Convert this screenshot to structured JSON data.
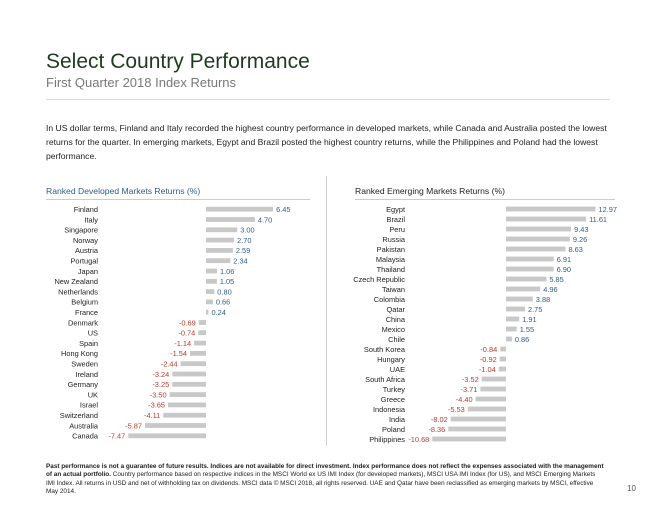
{
  "title": "Select Country Performance",
  "subtitle": "First Quarter 2018 Index Returns",
  "intro": "In US dollar terms, Finland and Italy recorded the highest country performance in developed markets, while Canada and Australia posted the lowest returns for the quarter. In emerging markets, Egypt and Brazil posted the highest country returns, while the Philippines and Poland had the lowest performance.",
  "footer_bold": "Past performance is not a guarantee of future results. Indices are not available for direct investment. Index performance does not reflect the expenses associated with the management of an actual portfolio.",
  "footer_rest": " Country performance based on respective indices in the MSCI World ex US IMI Index (for developed markets), MSCI USA IMI Index (for US), and MSCI Emerging Markets IMI Index. All returns in USD and net of withholding tax on dividends. MSCI data © MSCI 2018, all rights reserved. UAE and Qatar have been reclassified as emerging markets by MSCI, effective May 2014.",
  "page_number": "10",
  "colors": {
    "positive": "#2e5d8a",
    "negative": "#c0392b",
    "bar": "#c8c8c8"
  },
  "chart_data": [
    {
      "type": "bar",
      "orientation": "horizontal",
      "title": "Ranked Developed Markets Returns (%)",
      "categories": [
        "Finland",
        "Italy",
        "Singapore",
        "Norway",
        "Austria",
        "Portugal",
        "Japan",
        "New Zealand",
        "Netherlands",
        "Belgium",
        "France",
        "Denmark",
        "US",
        "Spain",
        "Hong Kong",
        "Sweden",
        "Ireland",
        "Germany",
        "UK",
        "Israel",
        "Switzerland",
        "Australia",
        "Canada"
      ],
      "values": [
        6.45,
        4.7,
        3.0,
        2.7,
        2.59,
        2.34,
        1.06,
        1.05,
        0.8,
        0.66,
        0.24,
        -0.69,
        -0.74,
        -1.14,
        -1.54,
        -2.44,
        -3.24,
        -3.25,
        -3.5,
        -3.65,
        -4.11,
        -5.87,
        -7.47
      ],
      "labels": [
        "6.45",
        "4.70",
        "3.00",
        "2.70",
        "2.59",
        "2.34",
        "1.06",
        "1.05",
        "0.80",
        "0.66",
        "0.24",
        "-0.69",
        "-0.74",
        "-1.14",
        "-1.54",
        "-2.44",
        "-3.24",
        "-3.25",
        "-3.50",
        "-3.65",
        "-4.11",
        "-5.87",
        "-7.47"
      ]
    },
    {
      "type": "bar",
      "orientation": "horizontal",
      "title": "Ranked Emerging Markets Returns (%)",
      "categories": [
        "Egypt",
        "Brazil",
        "Peru",
        "Russia",
        "Pakistan",
        "Malaysia",
        "Thailand",
        "Czech Republic",
        "Taiwan",
        "Colombia",
        "Qatar",
        "China",
        "Mexico",
        "Chile",
        "South Korea",
        "Hungary",
        "UAE",
        "South Africa",
        "Turkey",
        "Greece",
        "Indonesia",
        "India",
        "Poland",
        "Philippines"
      ],
      "values": [
        12.97,
        11.61,
        9.43,
        9.26,
        8.63,
        6.91,
        6.9,
        5.85,
        4.96,
        3.88,
        2.75,
        1.91,
        1.55,
        0.86,
        -0.84,
        -0.92,
        -1.04,
        -3.52,
        -3.71,
        -4.4,
        -5.53,
        -8.02,
        -8.36,
        -10.68
      ],
      "labels": [
        "12.97",
        "11.61",
        "9.43",
        "9.26",
        "8.63",
        "6.91",
        "6.90",
        "5.85",
        "4.96",
        "3.88",
        "2.75",
        "1.91",
        "1.55",
        "0.86",
        "-0.84",
        "-0.92",
        "-1.04",
        "-3.52",
        "-3.71",
        "-4.40",
        "-5.53",
        "-8.02",
        "-8.36",
        "-10.68"
      ]
    }
  ]
}
